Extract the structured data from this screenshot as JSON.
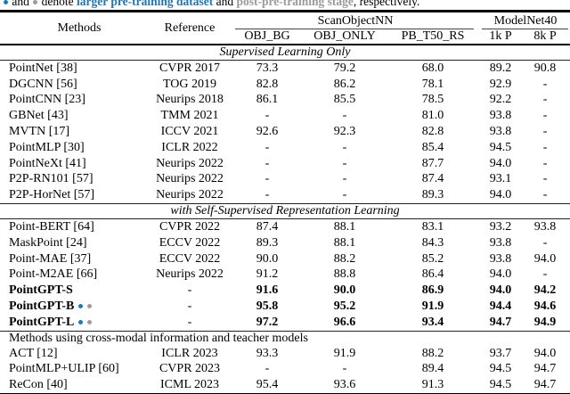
{
  "colors": {
    "larger-dataset": "#1f77b4",
    "post-pretraining": "#9b9b9b"
  },
  "caption": {
    "pre_text": " and ",
    "mid_text": " denote ",
    "highlight1": "larger pre-training dataset",
    "and_text": " and ",
    "highlight2": "post-pre-training stage",
    "end_text": ", respectively."
  },
  "table": {
    "col_headers": {
      "methods": "Methods",
      "reference": "Reference",
      "group1": "ScanObjectNN",
      "group2": "ModelNet40",
      "sub1": "OBJ_BG",
      "sub2": "OBJ_ONLY",
      "sub3": "PB_T50_RS",
      "sub4": "1k P",
      "sub5": "8k P"
    },
    "sections": [
      {
        "title": "Supervised Learning Only",
        "style": "sec-italic",
        "rules": "rule-top-thick rule-bottom",
        "rows": [
          {
            "method": "PointNet [38]",
            "ref": "CVPR 2017",
            "values": [
              "73.3",
              "79.2",
              "68.0",
              "89.2",
              "90.8"
            ],
            "bold": false,
            "dots": []
          },
          {
            "method": "DGCNN [56]",
            "ref": "TOG 2019",
            "values": [
              "82.8",
              "86.2",
              "78.1",
              "92.9",
              "-"
            ],
            "bold": false,
            "dots": []
          },
          {
            "method": "PointCNN [23]",
            "ref": "Neurips 2018",
            "values": [
              "86.1",
              "85.5",
              "78.5",
              "92.2",
              "-"
            ],
            "bold": false,
            "dots": []
          },
          {
            "method": "GBNet [43]",
            "ref": "TMM 2021",
            "values": [
              "-",
              "-",
              "81.0",
              "93.8",
              "-"
            ],
            "bold": false,
            "dots": []
          },
          {
            "method": "MVTN [17]",
            "ref": "ICCV 2021",
            "values": [
              "92.6",
              "92.3",
              "82.8",
              "93.8",
              "-"
            ],
            "bold": false,
            "dots": []
          },
          {
            "method": "PointMLP [30]",
            "ref": "ICLR 2022",
            "values": [
              "-",
              "-",
              "85.4",
              "94.5",
              "-"
            ],
            "bold": false,
            "dots": []
          },
          {
            "method": "PointNeXt [41]",
            "ref": "Neurips 2022",
            "values": [
              "-",
              "-",
              "87.7",
              "94.0",
              "-"
            ],
            "bold": false,
            "dots": []
          },
          {
            "method": "P2P-RN101 [57]",
            "ref": "Neurips 2022",
            "values": [
              "-",
              "-",
              "87.4",
              "93.1",
              "-"
            ],
            "bold": false,
            "dots": []
          },
          {
            "method": "P2P-HorNet [57]",
            "ref": "Neurips 2022",
            "values": [
              "-",
              "-",
              "89.3",
              "94.0",
              "-"
            ],
            "bold": false,
            "dots": []
          }
        ]
      },
      {
        "title": "with Self-Supervised Representation Learning",
        "style": "sec-italic",
        "rules": "rule-top rule-bottom",
        "rows": [
          {
            "method": "Point-BERT [64]",
            "ref": "CVPR 2022",
            "values": [
              "87.4",
              "88.1",
              "83.1",
              "93.2",
              "93.8"
            ],
            "bold": false,
            "dots": []
          },
          {
            "method": "MaskPoint [24]",
            "ref": "ECCV 2022",
            "values": [
              "89.3",
              "88.1",
              "84.3",
              "93.8",
              "-"
            ],
            "bold": false,
            "dots": []
          },
          {
            "method": "Point-MAE [37]",
            "ref": "ECCV 2022",
            "values": [
              "90.0",
              "88.2",
              "85.2",
              "93.8",
              "94.0"
            ],
            "bold": false,
            "dots": []
          },
          {
            "method": "Point-M2AE [66]",
            "ref": "Neurips 2022",
            "values": [
              "91.2",
              "88.8",
              "86.4",
              "94.0",
              "-"
            ],
            "bold": false,
            "dots": []
          },
          {
            "method": "PointGPT-S",
            "ref": "-",
            "values": [
              "91.6",
              "90.0",
              "86.9",
              "94.0",
              "94.2"
            ],
            "bold": true,
            "dots": []
          },
          {
            "method": "PointGPT-B",
            "ref": "-",
            "values": [
              "95.8",
              "95.2",
              "91.9",
              "94.4",
              "94.6"
            ],
            "bold": true,
            "dots": [
              "larger-dataset",
              "post-pretraining"
            ]
          },
          {
            "method": "PointGPT-L",
            "ref": "-",
            "values": [
              "97.2",
              "96.6",
              "93.4",
              "94.7",
              "94.9"
            ],
            "bold": true,
            "dots": [
              "larger-dataset",
              "post-pretraining"
            ]
          }
        ]
      },
      {
        "title": "Methods using cross-modal information and teacher models",
        "style": "sec-left",
        "rules": "rule-top",
        "rows": [
          {
            "method": "ACT [12]",
            "ref": "ICLR 2023",
            "values": [
              "93.3",
              "91.9",
              "88.2",
              "93.7",
              "94.0"
            ],
            "bold": false,
            "dots": []
          },
          {
            "method": "PointMLP+ULIP [60]",
            "ref": "CVPR 2023",
            "values": [
              "-",
              "-",
              "89.4",
              "94.5",
              "94.7"
            ],
            "bold": false,
            "dots": []
          },
          {
            "method": "ReCon [40]",
            "ref": "ICML 2023",
            "values": [
              "95.4",
              "93.6",
              "91.3",
              "94.5",
              "94.7"
            ],
            "bold": false,
            "dots": []
          }
        ]
      }
    ]
  }
}
